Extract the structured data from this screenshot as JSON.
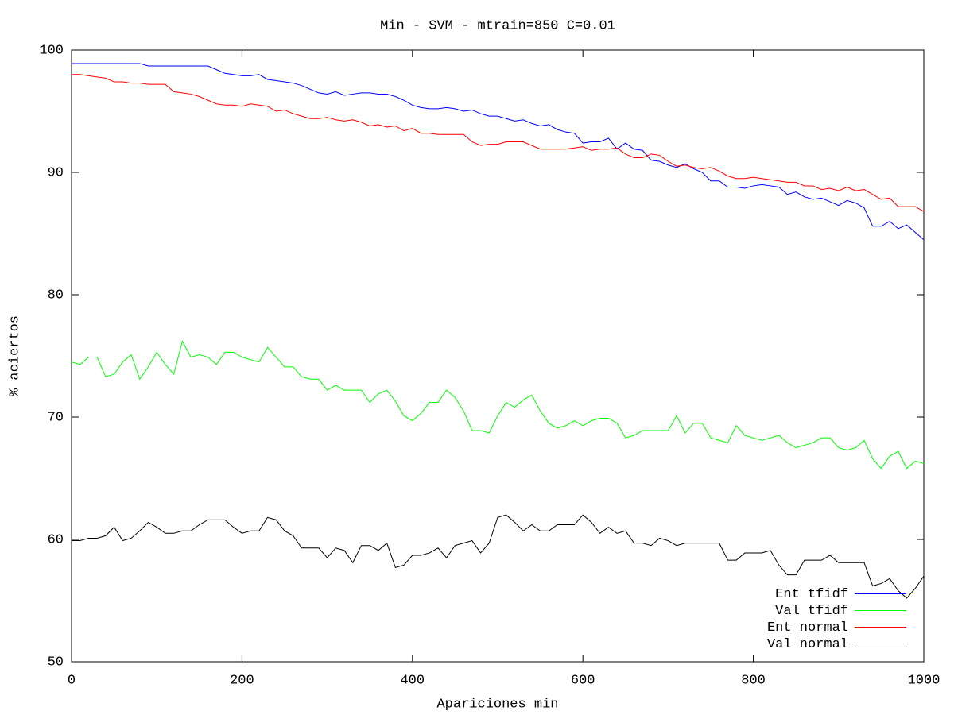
{
  "chart_data": {
    "type": "line",
    "title": "Min - SVM - mtrain=850 C=0.01",
    "xlabel": "Apariciones min",
    "ylabel": "% aciertos",
    "xlim": [
      0,
      1000
    ],
    "xticks": [
      0,
      200,
      400,
      600,
      800,
      1000
    ],
    "ylim": [
      50,
      100
    ],
    "yticks": [
      50,
      60,
      70,
      80,
      90,
      100
    ],
    "legend": "bottom right",
    "x": [
      0,
      10,
      20,
      30,
      40,
      50,
      60,
      70,
      80,
      90,
      100,
      110,
      120,
      130,
      140,
      150,
      160,
      170,
      180,
      190,
      200,
      210,
      220,
      230,
      240,
      250,
      260,
      270,
      280,
      290,
      300,
      310,
      320,
      330,
      340,
      350,
      360,
      370,
      380,
      390,
      400,
      410,
      420,
      430,
      440,
      450,
      460,
      470,
      480,
      490,
      500,
      510,
      520,
      530,
      540,
      550,
      560,
      570,
      580,
      590,
      600,
      610,
      620,
      630,
      640,
      650,
      660,
      670,
      680,
      690,
      700,
      710,
      720,
      730,
      740,
      750,
      760,
      770,
      780,
      790,
      800,
      810,
      820,
      830,
      840,
      850,
      860,
      870,
      880,
      890,
      900,
      910,
      920,
      930,
      940,
      950,
      960,
      970,
      980,
      990,
      1000
    ],
    "series": [
      {
        "name": "Ent tfidf",
        "color": "#0000ff",
        "values": [
          98.9,
          98.9,
          98.9,
          98.9,
          98.9,
          98.9,
          98.9,
          98.9,
          98.9,
          98.7,
          98.7,
          98.7,
          98.7,
          98.7,
          98.7,
          98.7,
          98.7,
          98.4,
          98.1,
          98.0,
          97.9,
          97.9,
          98.0,
          97.6,
          97.5,
          97.4,
          97.3,
          97.1,
          96.8,
          96.5,
          96.4,
          96.6,
          96.3,
          96.4,
          96.5,
          96.5,
          96.4,
          96.4,
          96.2,
          95.9,
          95.5,
          95.3,
          95.2,
          95.2,
          95.3,
          95.2,
          95.0,
          95.1,
          94.8,
          94.6,
          94.6,
          94.4,
          94.2,
          94.3,
          94.0,
          93.8,
          93.9,
          93.5,
          93.3,
          93.2,
          92.4,
          92.5,
          92.5,
          92.8,
          91.9,
          92.4,
          91.9,
          91.8,
          91.0,
          90.9,
          90.6,
          90.4,
          90.7,
          90.3,
          90.0,
          89.3,
          89.3,
          88.8,
          88.8,
          88.7,
          88.9,
          89.0,
          88.9,
          88.8,
          88.2,
          88.4,
          88.0,
          87.8,
          87.9,
          87.6,
          87.3,
          87.7,
          87.5,
          87.1,
          85.6,
          85.6,
          86.0,
          85.4,
          85.7,
          85.1,
          84.5
        ]
      },
      {
        "name": "Val tfidf",
        "color": "#00ff00",
        "values": [
          74.5,
          74.3,
          74.9,
          74.9,
          73.3,
          73.5,
          74.5,
          75.1,
          73.1,
          74.1,
          75.3,
          74.3,
          73.5,
          76.2,
          74.9,
          75.1,
          74.9,
          74.3,
          75.3,
          75.3,
          74.9,
          74.7,
          74.5,
          75.7,
          74.9,
          74.1,
          74.1,
          73.3,
          73.1,
          73.1,
          72.2,
          72.6,
          72.2,
          72.2,
          72.2,
          71.2,
          71.9,
          72.2,
          71.3,
          70.1,
          69.7,
          70.3,
          71.2,
          71.2,
          72.2,
          71.6,
          70.5,
          68.9,
          68.9,
          68.7,
          70.1,
          71.2,
          70.8,
          71.4,
          71.8,
          70.5,
          69.5,
          69.1,
          69.3,
          69.7,
          69.3,
          69.7,
          69.9,
          69.9,
          69.5,
          68.3,
          68.5,
          68.9,
          68.9,
          68.9,
          68.9,
          70.1,
          68.7,
          69.5,
          69.5,
          68.3,
          68.1,
          67.9,
          69.3,
          68.5,
          68.3,
          68.1,
          68.3,
          68.5,
          67.9,
          67.5,
          67.7,
          67.9,
          68.3,
          68.3,
          67.5,
          67.3,
          67.5,
          68.1,
          66.6,
          65.8,
          66.8,
          67.2,
          65.8,
          66.4,
          66.2
        ]
      },
      {
        "name": "Ent normal",
        "color": "#ff0000",
        "values": [
          98.0,
          98.0,
          97.9,
          97.8,
          97.7,
          97.4,
          97.4,
          97.3,
          97.3,
          97.2,
          97.2,
          97.2,
          96.6,
          96.5,
          96.4,
          96.2,
          95.9,
          95.6,
          95.5,
          95.5,
          95.4,
          95.6,
          95.5,
          95.4,
          95.0,
          95.1,
          94.8,
          94.6,
          94.4,
          94.4,
          94.5,
          94.3,
          94.2,
          94.3,
          94.1,
          93.8,
          93.9,
          93.7,
          93.8,
          93.4,
          93.6,
          93.2,
          93.2,
          93.1,
          93.1,
          93.1,
          93.1,
          92.5,
          92.2,
          92.3,
          92.3,
          92.5,
          92.5,
          92.5,
          92.2,
          91.9,
          91.9,
          91.9,
          91.9,
          92.0,
          92.1,
          91.8,
          91.9,
          91.9,
          92.0,
          91.5,
          91.2,
          91.2,
          91.5,
          91.4,
          90.9,
          90.5,
          90.6,
          90.4,
          90.3,
          90.4,
          90.1,
          89.7,
          89.5,
          89.5,
          89.6,
          89.5,
          89.4,
          89.3,
          89.2,
          89.2,
          88.9,
          88.9,
          88.6,
          88.7,
          88.5,
          88.8,
          88.5,
          88.6,
          88.2,
          87.8,
          87.9,
          87.2,
          87.2,
          87.2,
          86.8
        ]
      },
      {
        "name": "Val normal",
        "color": "#000000",
        "values": [
          59.9,
          59.9,
          60.1,
          60.1,
          60.3,
          61.0,
          59.9,
          60.1,
          60.7,
          61.4,
          61.0,
          60.5,
          60.5,
          60.7,
          60.7,
          61.2,
          61.6,
          61.6,
          61.6,
          61.0,
          60.5,
          60.7,
          60.7,
          61.8,
          61.6,
          60.7,
          60.3,
          59.3,
          59.3,
          59.3,
          58.5,
          59.3,
          59.1,
          58.1,
          59.5,
          59.5,
          59.1,
          59.7,
          57.7,
          57.9,
          58.7,
          58.7,
          58.9,
          59.3,
          58.5,
          59.5,
          59.7,
          59.9,
          58.9,
          59.7,
          61.8,
          62.0,
          61.4,
          60.7,
          61.2,
          60.7,
          60.7,
          61.2,
          61.2,
          61.2,
          62.0,
          61.4,
          60.5,
          61.0,
          60.5,
          60.7,
          59.7,
          59.7,
          59.5,
          60.1,
          59.9,
          59.5,
          59.7,
          59.7,
          59.7,
          59.7,
          59.7,
          58.3,
          58.3,
          58.9,
          58.9,
          58.9,
          59.1,
          57.9,
          57.1,
          57.1,
          58.3,
          58.3,
          58.3,
          58.7,
          58.1,
          58.1,
          58.1,
          58.1,
          56.2,
          56.4,
          56.8,
          55.8,
          55.2,
          56.0,
          57.0
        ]
      }
    ]
  }
}
